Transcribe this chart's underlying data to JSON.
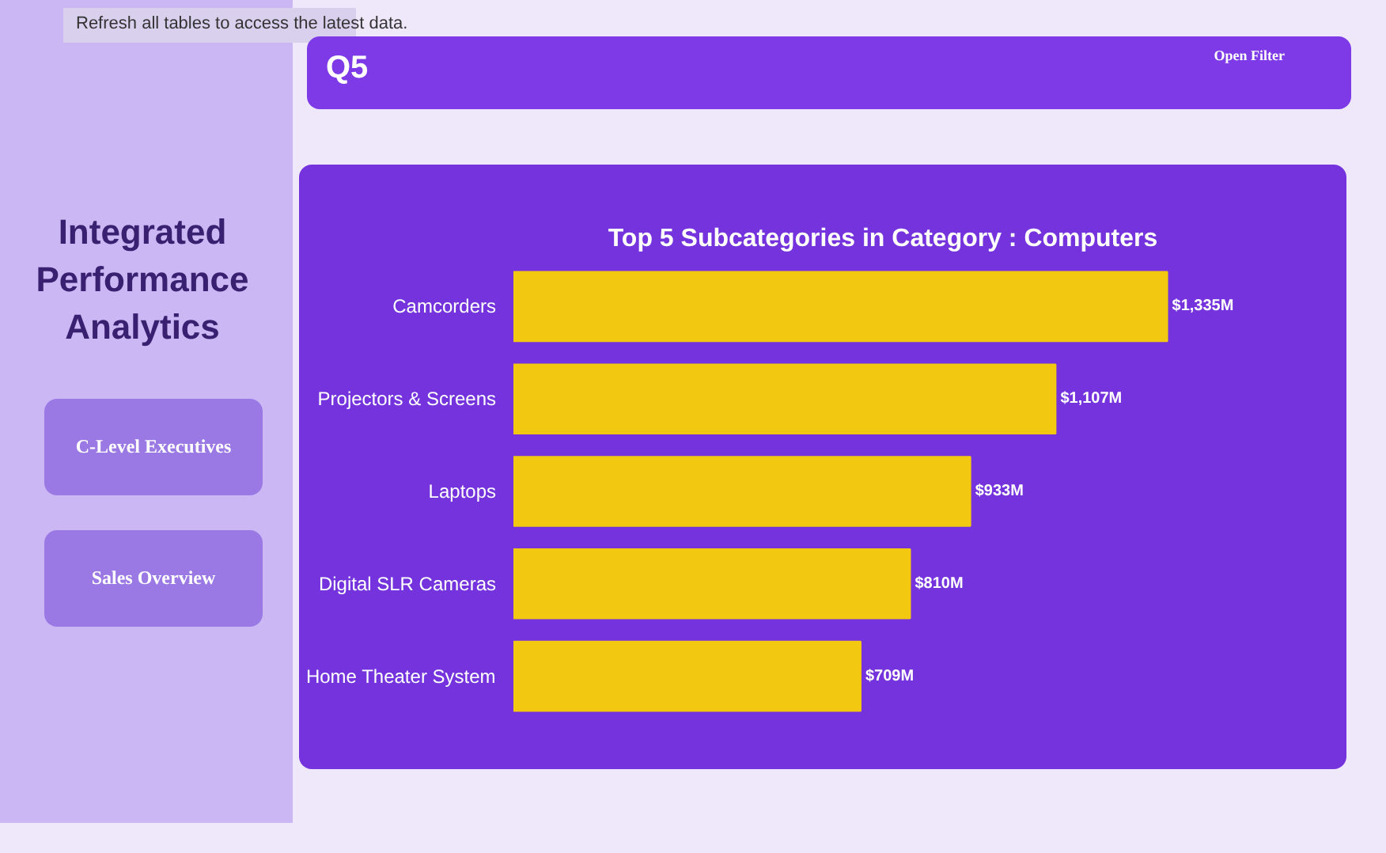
{
  "chart_data": {
    "type": "bar",
    "orientation": "horizontal",
    "title": "Top 5 Subcategories in Category : Computers",
    "categories": [
      "Camcorders",
      "Projectors & Screens",
      "Laptops",
      "Digital SLR Cameras",
      "Home Theater System"
    ],
    "values": [
      1335,
      1107,
      933,
      810,
      709
    ],
    "value_labels": [
      "$1,335M",
      "$1,107M",
      "$933M",
      "$810M",
      "$709M"
    ],
    "color": "#f2c811",
    "annotations": [
      "Refresh all tables to access the latest data.",
      "Q5",
      "Open Filter",
      "Integrated Performance Analytics",
      "C-Level Executives",
      "Sales Overview"
    ]
  }
}
